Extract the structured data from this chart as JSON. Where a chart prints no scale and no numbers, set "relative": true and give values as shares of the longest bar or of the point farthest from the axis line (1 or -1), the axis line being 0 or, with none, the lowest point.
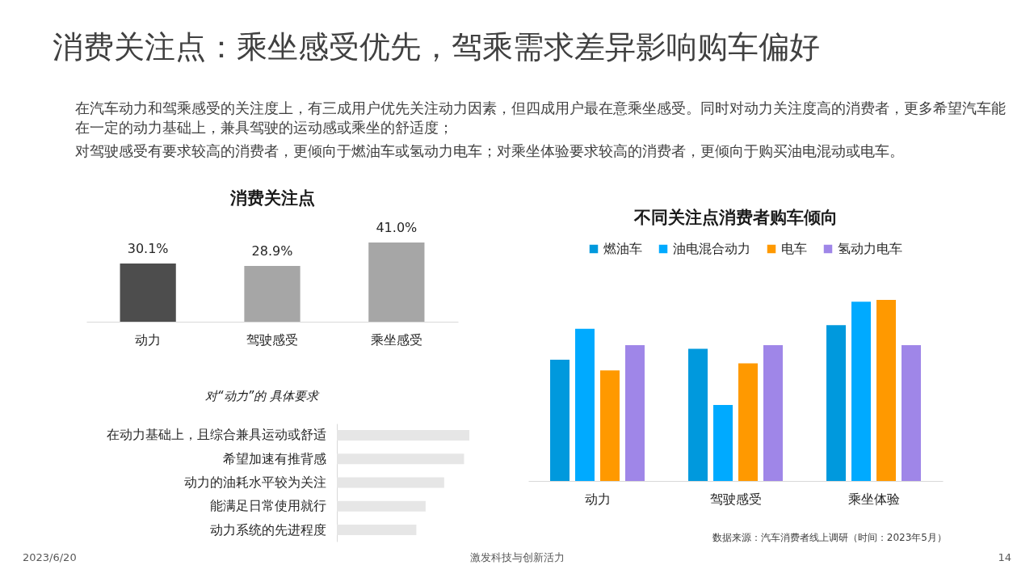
{
  "chart_data": [
    {
      "type": "other",
      "title": "消费关注点：乘坐感受优先，驾乘需求差异影响购车偏好",
      "annotations": [
        "在汽车动力和驾乘感受的关注度上，有三成用户优先关注动力因素，但四成用户最在意乘坐感受。同时对动力关注度高的消费者，更多希望汽车能在一定的动力基础上，兼具驾驶的运动感或乘坐的舒适度；",
        "对驾驶感受有要求较高的消费者，更倾向于燃油车或氢动力电车；对乘坐体验要求较高的消费者，更倾向于购买油电混动或电车。"
      ]
    },
    {
      "type": "bar",
      "title": "消费关注点",
      "categories": [
        "动力",
        "驾驶感受",
        "乘坐感受"
      ],
      "values": [
        30.1,
        28.9,
        41.0
      ],
      "colors": [
        "#4d4d4d",
        "#a6a6a6",
        "#a6a6a6"
      ],
      "value_labels": [
        "30.1%",
        "28.9%",
        "41.0%"
      ],
      "tick_labels": "x"
    },
    {
      "type": "bar",
      "orientation": "horizontal",
      "relative": true,
      "title": "对“动力”的 具体要求",
      "categories": [
        "在动力基础上，且综合兼具运动或舒适",
        "希望加速有推背感",
        "动力的油耗水平较为关注",
        "能满足日常使用就行",
        "动力系统的先进程度"
      ],
      "values": [
        1,
        0.96,
        0.81,
        0.67,
        0.6
      ],
      "color": "#e6e6e6"
    },
    {
      "type": "bar",
      "relative": true,
      "title": "不同关注点消费者购车倾向",
      "categories": [
        "动力",
        "驾驶感受",
        "乘坐体验"
      ],
      "series": [
        {
          "name": "燃油车",
          "color": "#0099dd",
          "values": [
            0.67,
            0.73,
            0.86
          ]
        },
        {
          "name": "油电混合动力",
          "color": "#00aaff",
          "values": [
            0.84,
            0.42,
            0.99
          ]
        },
        {
          "name": "电车",
          "color": "#ff9900",
          "values": [
            0.61,
            0.65,
            1
          ]
        },
        {
          "name": "氢动力电车",
          "color": "#9f86e8",
          "values": [
            0.75,
            0.75,
            0.75
          ]
        }
      ],
      "legend": "top",
      "annotations": [
        "数据来源：汽车消费者线上调研（时间：2023年5月）"
      ]
    },
    {
      "type": "other",
      "annotations": [
        "2023/6/20",
        "激发科技与创新活力",
        "14"
      ]
    }
  ]
}
